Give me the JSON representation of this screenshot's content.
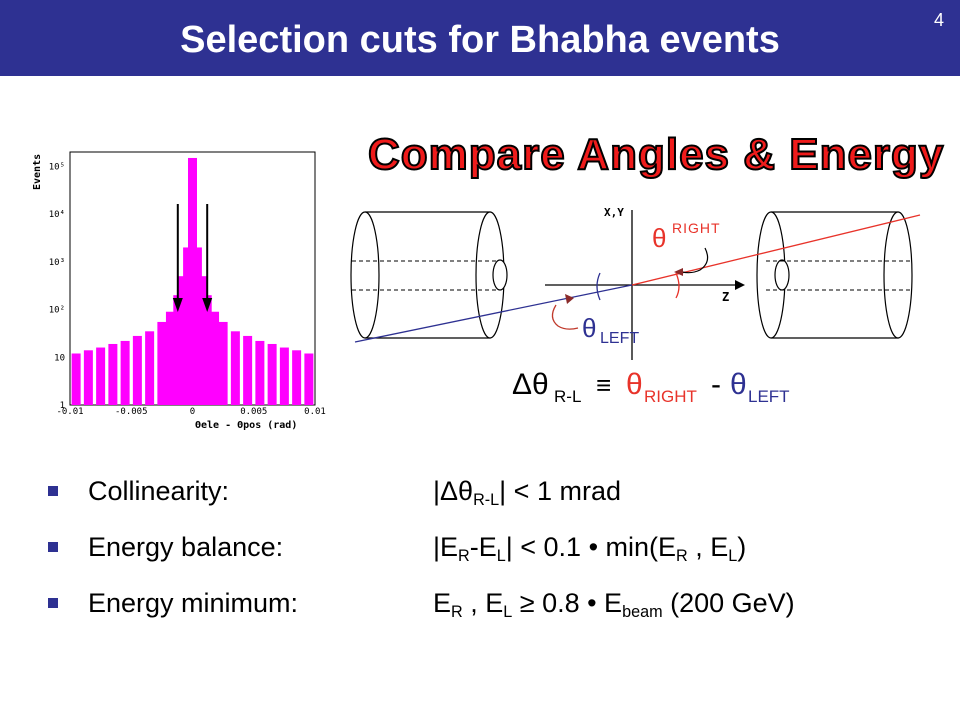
{
  "slide": {
    "title": "Selection cuts for Bhabha events",
    "number": "4",
    "headline": "Compare Angles & Energy",
    "accent_color": "#2e3192",
    "headline_color": "#ef1b1b"
  },
  "chart_data": {
    "type": "bar",
    "ylabel": "Events",
    "xlabel": "Θele - Θpos (rad)",
    "y_scale": "log",
    "ylim": [
      1,
      200000
    ],
    "xlim": [
      -0.01,
      0.01
    ],
    "x_ticks": [
      "-0.01",
      "-0.005",
      "0",
      "0.005",
      "0.01"
    ],
    "y_ticks": [
      "1",
      "10",
      "10²",
      "10³",
      "10⁴",
      "10⁵"
    ],
    "bar_color": "#ff00ff",
    "cut_arrows_at": [
      -0.0012,
      0.0012
    ],
    "x": [
      -0.0095,
      -0.0085,
      -0.0075,
      -0.0065,
      -0.0055,
      -0.0045,
      -0.0035,
      -0.0025,
      -0.0018,
      -0.0012,
      -0.0008,
      -0.0004,
      0,
      0.0004,
      0.0008,
      0.0012,
      0.0018,
      0.0025,
      0.0035,
      0.0045,
      0.0055,
      0.0065,
      0.0075,
      0.0085,
      0.0095
    ],
    "values": [
      12,
      14,
      16,
      19,
      22,
      28,
      35,
      55,
      90,
      200,
      500,
      2000,
      150000,
      2000,
      500,
      200,
      90,
      55,
      35,
      28,
      22,
      19,
      16,
      14,
      12
    ]
  },
  "diagram": {
    "axis_xy": "X,Y",
    "axis_z": "Z",
    "theta_right": "θ",
    "theta_right_sup": "RIGHT",
    "theta_left": "θ",
    "theta_left_sub": "LEFT",
    "right_color": "#e8332a",
    "left_color": "#2e3192"
  },
  "formula": {
    "lhs": "Δθ",
    "lhs_sub": "R-L",
    "equiv": "≡",
    "t1": "θ",
    "t1_sub": "RIGHT",
    "minus": "-",
    "t2": "θ",
    "t2_sub": "LEFT"
  },
  "bullets": [
    {
      "label": "Collinearity:",
      "v1": "|Δθ",
      "v1_sub": "R-L",
      "v2": "| < 1 mrad"
    },
    {
      "label": "Energy balance:",
      "v1": "|E",
      "v1_sub": "R",
      "v2": "-E",
      "v2_sub": "L",
      "v3": "| < 0.1 • min(E",
      "v3_sub": "R",
      "v4": " , E",
      "v4_sub": "L",
      "v5": ")"
    },
    {
      "label": "Energy minimum:",
      "v1": "E",
      "v1_sub": "R",
      "v2": " , E",
      "v2_sub": "L",
      "v3": " ≥ 0.8 • E",
      "v3_sub": "beam",
      "v4": " (200 GeV)"
    }
  ]
}
